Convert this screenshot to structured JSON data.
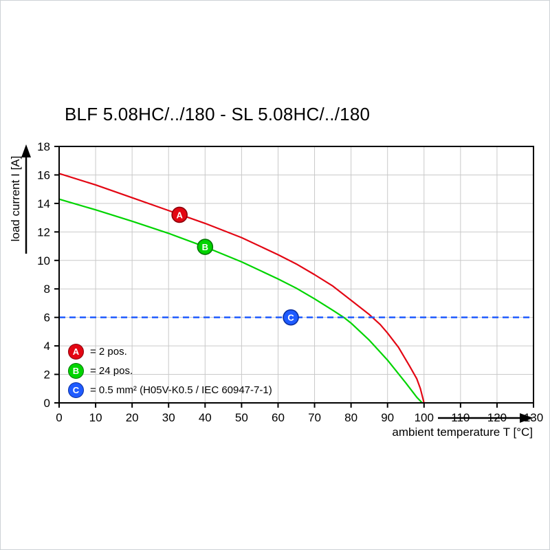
{
  "chart_data": {
    "type": "line",
    "title": "BLF 5.08HC/../180 - SL 5.08HC/../180",
    "xlabel": "ambient temperature T [°C]",
    "ylabel": "load current I [A]",
    "xlim": [
      0,
      130
    ],
    "ylim": [
      0,
      18
    ],
    "x_ticks": [
      0,
      10,
      20,
      30,
      40,
      50,
      60,
      70,
      80,
      90,
      100,
      110,
      120,
      130
    ],
    "y_ticks": [
      0,
      2,
      4,
      6,
      8,
      10,
      12,
      14,
      16,
      18
    ],
    "grid": true,
    "grid_color": "#c9c9c9",
    "legend_position": "bottom-left-inside",
    "series": [
      {
        "name": "A",
        "letter": "A",
        "legend_label": "= 2 pos.",
        "type": "curve",
        "color": "#e30613",
        "border_color": "#8a000a",
        "points": [
          [
            0,
            16.1
          ],
          [
            10,
            15.3
          ],
          [
            20,
            14.4
          ],
          [
            30,
            13.5
          ],
          [
            40,
            12.6
          ],
          [
            50,
            11.6
          ],
          [
            60,
            10.4
          ],
          [
            65,
            9.75
          ],
          [
            70,
            9.0
          ],
          [
            75,
            8.2
          ],
          [
            80,
            7.2
          ],
          [
            85,
            6.2
          ],
          [
            88,
            5.5
          ],
          [
            90,
            4.9
          ],
          [
            93,
            3.9
          ],
          [
            96,
            2.6
          ],
          [
            98,
            1.7
          ],
          [
            99,
            1.0
          ],
          [
            100,
            0
          ]
        ],
        "marker": {
          "x": 33,
          "y": 13.2
        }
      },
      {
        "name": "B",
        "letter": "B",
        "legend_label": "= 24 pos.",
        "type": "curve",
        "color": "#00d400",
        "border_color": "#007500",
        "points": [
          [
            0,
            14.3
          ],
          [
            10,
            13.55
          ],
          [
            20,
            12.75
          ],
          [
            30,
            11.9
          ],
          [
            40,
            10.95
          ],
          [
            50,
            9.9
          ],
          [
            60,
            8.7
          ],
          [
            65,
            8.05
          ],
          [
            70,
            7.3
          ],
          [
            75,
            6.5
          ],
          [
            78,
            6.0
          ],
          [
            80,
            5.6
          ],
          [
            85,
            4.4
          ],
          [
            90,
            3.0
          ],
          [
            95,
            1.4
          ],
          [
            98,
            0.4
          ],
          [
            99.5,
            0
          ]
        ],
        "marker": {
          "x": 40,
          "y": 10.95
        }
      },
      {
        "name": "C",
        "letter": "C",
        "legend_label": "= 0.5 mm² (H05V-K0.5 / IEC 60947-7-1)",
        "type": "hline",
        "y": 6,
        "dashed": true,
        "color": "#1f5bff",
        "border_color": "#0a2fa0",
        "marker": {
          "x": 63.5,
          "y": 6
        }
      }
    ]
  }
}
